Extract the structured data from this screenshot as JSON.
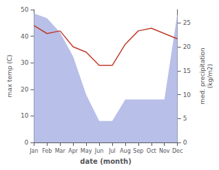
{
  "chart_data": {
    "type": "line",
    "xlabel": "date (month)",
    "ylabel": "max temp (C)",
    "y2label": "med. precipitation\n(kg/m2)",
    "categories": [
      "Jan",
      "Feb",
      "Mar",
      "Apr",
      "May",
      "Jun",
      "Jul",
      "Aug",
      "Sep",
      "Oct",
      "Nov",
      "Dec"
    ],
    "series": [
      {
        "type": "area",
        "axis": "y2",
        "color": "#b8bfe8",
        "values": [
          27,
          26,
          23,
          18,
          10,
          4.5,
          4.5,
          9,
          9,
          9,
          9,
          27
        ]
      },
      {
        "type": "line",
        "color": "#c0392b",
        "values": [
          44,
          41,
          42,
          36,
          34,
          29,
          29,
          37,
          42,
          43,
          41,
          39
        ]
      }
    ],
    "ylim": [
      0,
      50
    ],
    "yticks": [
      0,
      10,
      20,
      30,
      40,
      50
    ],
    "y2lim": [
      0,
      27.8
    ],
    "y2ticks": [
      0,
      5,
      10,
      15,
      20,
      25
    ],
    "grid": false
  }
}
